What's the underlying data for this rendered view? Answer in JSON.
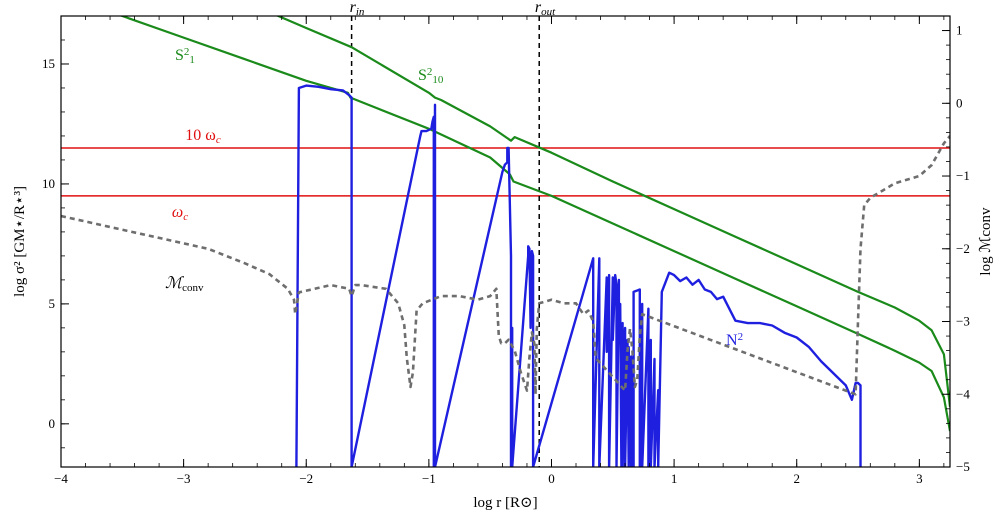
{
  "chart_data": {
    "type": "line",
    "xlabel": "log r [R⊙]",
    "ylabel": "log σ² [GM⋆/R⋆³]",
    "ylabel_right": "log ℳconv",
    "xlim": [
      -4.0,
      3.25
    ],
    "ylim": [
      -1.8,
      17.0
    ],
    "ylim_right": [
      -5.0,
      1.2
    ],
    "x_ticks": [
      -4,
      -3,
      -2,
      -1,
      0,
      1,
      2,
      3
    ],
    "x_tick_labels": [
      "−4",
      "−3",
      "−2",
      "−1",
      "0",
      "1",
      "2",
      "3"
    ],
    "y_ticks": [
      0,
      5,
      10,
      15
    ],
    "y_tick_labels": [
      "0",
      "5",
      "10",
      "15"
    ],
    "y_right_ticks": [
      -5,
      -4,
      -3,
      -2,
      -1,
      0,
      1
    ],
    "y_right_tick_labels": [
      "−5",
      "−4",
      "−3",
      "−2",
      "−1",
      "0",
      "1"
    ],
    "colors": {
      "N2": "#1f1fe0",
      "S": "#1a8a1a",
      "omega": "#e01010",
      "Mconv": "#6e6e6e",
      "vline": "#000000"
    },
    "hlines": [
      {
        "name": "10 ω_c",
        "label_main": "10 ω",
        "label_sub": "c",
        "y": 11.5
      },
      {
        "name": "ω_c",
        "label_main": "ω",
        "label_sub": "c",
        "y": 9.5
      }
    ],
    "vlines": [
      {
        "label_main": "r",
        "label_sub": "in",
        "x": -1.63
      },
      {
        "label_main": "r",
        "label_sub": "out",
        "x": -0.1
      }
    ],
    "series": [
      {
        "name": "S1²",
        "label_main": "S",
        "label_sub": "1",
        "label_sup": "2",
        "axis": "left",
        "x": [
          -4.0,
          -3.5,
          -3.0,
          -2.5,
          -2.0,
          -1.66,
          -1.64,
          -1.0,
          -0.5,
          -0.34,
          -0.31,
          0.0,
          0.5,
          1.0,
          1.5,
          2.0,
          2.5,
          2.8,
          3.0,
          3.1,
          3.2,
          3.25
        ],
        "y": [
          17.9,
          17.0,
          16.1,
          15.2,
          14.3,
          13.8,
          13.6,
          12.3,
          11.1,
          10.4,
          10.1,
          9.5,
          8.35,
          7.2,
          6.05,
          4.9,
          3.75,
          3.05,
          2.55,
          2.2,
          1.1,
          -0.3
        ]
      },
      {
        "name": "S10²",
        "label_main": "S",
        "label_sub": "10",
        "label_sup": "2",
        "axis": "left",
        "x": [
          -2.5,
          -2.0,
          -1.63,
          -1.0,
          -0.95,
          -0.9,
          -0.5,
          -0.33,
          -0.3,
          0.0,
          0.5,
          1.0,
          1.5,
          2.0,
          2.5,
          2.8,
          3.0,
          3.1,
          3.2,
          3.25
        ],
        "y": [
          17.6,
          16.5,
          15.7,
          13.8,
          13.6,
          13.5,
          12.4,
          11.8,
          11.95,
          11.3,
          10.1,
          8.95,
          7.8,
          6.65,
          5.5,
          4.85,
          4.3,
          3.9,
          2.9,
          0.7
        ]
      },
      {
        "name": "N²",
        "label_main": "N",
        "label_sup": "2",
        "axis": "left",
        "x": [
          -2.08,
          -2.06,
          -2.0,
          -1.9,
          -1.8,
          -1.7,
          -1.65,
          -1.63,
          -1.63,
          -1.07,
          -1.06,
          -1.02,
          -0.98,
          -0.97,
          -0.96,
          -0.96,
          -0.95,
          -0.95,
          -0.4,
          -0.38,
          -0.36,
          -0.36,
          -0.35,
          -0.33,
          -0.33,
          -0.32,
          -0.32,
          -0.19,
          -0.19,
          -0.18,
          -0.17,
          -0.16,
          -0.15,
          -0.15,
          0.34,
          0.34,
          0.39,
          0.39,
          0.45,
          0.45,
          0.47,
          0.47,
          0.5,
          0.5,
          0.52,
          0.53,
          0.53,
          0.55,
          0.55,
          0.56,
          0.57,
          0.58,
          0.58,
          0.59,
          0.6,
          0.6,
          0.62,
          0.63,
          0.63,
          0.65,
          0.65,
          0.67,
          0.67,
          0.72,
          0.72,
          0.74,
          0.74,
          0.79,
          0.79,
          0.81,
          0.81,
          0.84,
          0.84,
          0.87,
          0.87,
          0.9,
          0.96,
          1.0,
          1.05,
          1.1,
          1.15,
          1.2,
          1.25,
          1.3,
          1.35,
          1.4,
          1.5,
          1.6,
          1.7,
          1.8,
          1.9,
          2.0,
          2.1,
          2.2,
          2.3,
          2.4,
          2.45,
          2.48,
          2.5,
          2.52,
          2.52
        ],
        "y": [
          -1.8,
          14.0,
          14.1,
          14.05,
          13.95,
          13.9,
          13.7,
          13.6,
          -1.8,
          12.0,
          12.2,
          12.2,
          12.3,
          12.6,
          12.8,
          -1.8,
          13.3,
          -1.8,
          10.5,
          10.8,
          10.9,
          11.5,
          11.5,
          7.0,
          -1.8,
          4.0,
          -1.8,
          7.0,
          7.4,
          7.3,
          4.0,
          7.2,
          7.0,
          -1.8,
          6.9,
          -1.8,
          6.9,
          -1.8,
          6.1,
          3.0,
          6.2,
          -1.8,
          6.1,
          3.5,
          6.2,
          5.8,
          -1.8,
          6.0,
          3.5,
          5.0,
          -1.8,
          4.2,
          -1.8,
          3.0,
          4.0,
          -1.8,
          3.5,
          -1.8,
          3.2,
          -1.8,
          2.8,
          -1.8,
          5.5,
          5.6,
          -1.8,
          5.0,
          -1.8,
          4.8,
          -1.8,
          3.5,
          -1.8,
          2.7,
          -1.8,
          1.4,
          -1.8,
          5.5,
          6.3,
          6.2,
          5.95,
          6.1,
          5.8,
          6.0,
          5.6,
          5.5,
          5.2,
          5.3,
          4.3,
          4.2,
          4.2,
          4.1,
          3.8,
          3.6,
          3.2,
          2.6,
          2.1,
          1.6,
          1.0,
          1.7,
          1.7,
          1.6,
          -1.8
        ]
      },
      {
        "name": "ℳconv",
        "label_main": "ℳ",
        "label_sub": "conv",
        "axis": "right",
        "x": [
          -4.0,
          -3.6,
          -3.2,
          -2.8,
          -2.5,
          -2.3,
          -2.15,
          -2.1,
          -2.09,
          -2.06,
          -1.8,
          -1.65,
          -1.63,
          -1.6,
          -1.55,
          -1.35,
          -1.25,
          -1.2,
          -1.18,
          -1.15,
          -1.13,
          -1.1,
          -1.05,
          -0.9,
          -0.75,
          -0.6,
          -0.5,
          -0.45,
          -0.43,
          -0.41,
          -0.38,
          -0.35,
          -0.3,
          -0.25,
          -0.2,
          -0.18,
          -0.16,
          -0.14,
          -0.13,
          -0.12,
          -0.1,
          0.0,
          0.1,
          0.2,
          0.26,
          0.3,
          0.34,
          0.36,
          0.6,
          0.62,
          0.64,
          0.66,
          0.68,
          0.7,
          0.72,
          0.74,
          2.48,
          2.49,
          2.5,
          2.52,
          2.55,
          2.6,
          2.65,
          2.7,
          2.8,
          3.0,
          3.1,
          3.2,
          3.25
        ],
        "y": [
          -1.55,
          -1.7,
          -1.85,
          -2.0,
          -2.2,
          -2.35,
          -2.55,
          -2.7,
          -2.9,
          -2.6,
          -2.5,
          -2.55,
          -2.65,
          -2.5,
          -2.5,
          -2.55,
          -2.75,
          -3.05,
          -3.5,
          -3.9,
          -3.7,
          -2.85,
          -2.75,
          -2.65,
          -2.65,
          -2.7,
          -2.65,
          -2.55,
          -3.2,
          -3.3,
          -3.3,
          -3.25,
          -3.4,
          -3.7,
          -3.95,
          -3.5,
          -3.15,
          -3.3,
          -4.0,
          -3.1,
          -2.75,
          -2.7,
          -2.75,
          -2.75,
          -2.9,
          -2.85,
          -3.0,
          -3.5,
          -3.95,
          -3.4,
          -3.1,
          -3.4,
          -3.9,
          -3.8,
          -3.2,
          -2.9,
          -4.0,
          -3.5,
          -3.0,
          -2.0,
          -1.4,
          -1.3,
          -1.25,
          -1.2,
          -1.1,
          -1.0,
          -0.85,
          -0.55,
          -0.45
        ]
      }
    ]
  }
}
